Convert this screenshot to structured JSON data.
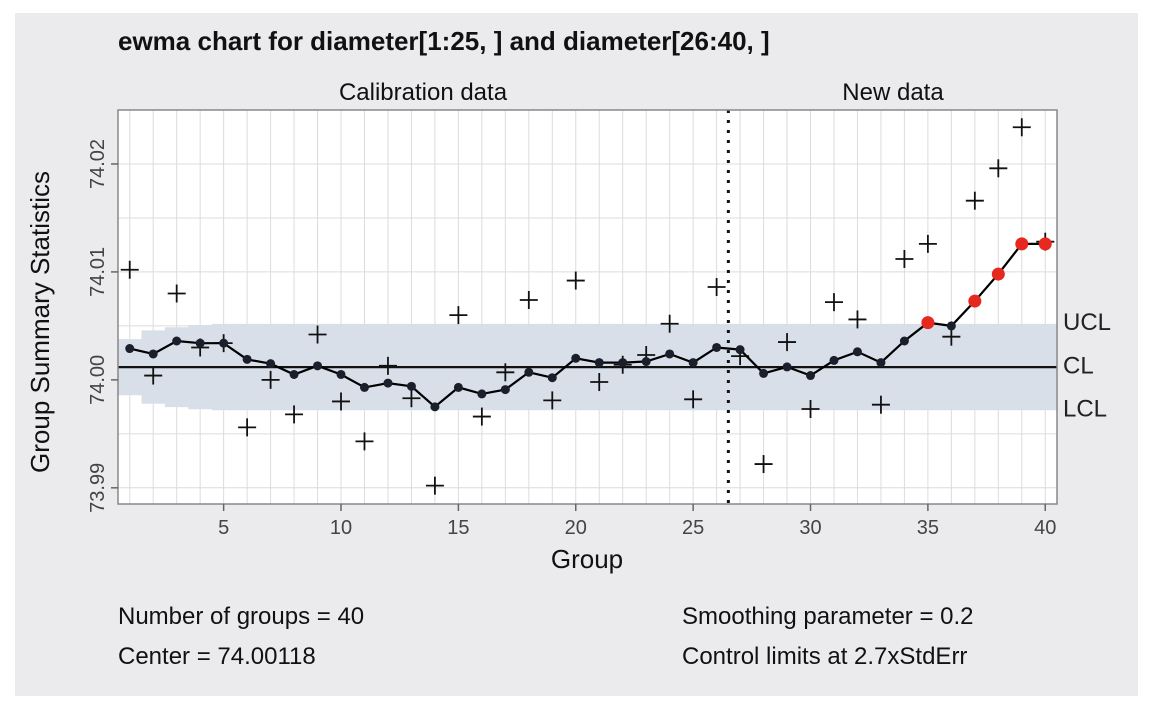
{
  "chart_data": {
    "type": "line",
    "title": "ewma chart for diameter[1:25, ] and diameter[26:40, ]",
    "xlabel": "Group",
    "ylabel": "Group Summary Statistics",
    "section_labels": [
      "Calibration data",
      "New data"
    ],
    "xlim": [
      0.5,
      40.5
    ],
    "ylim": [
      73.9885,
      74.025
    ],
    "x_ticks": [
      5,
      10,
      15,
      20,
      25,
      30,
      35,
      40
    ],
    "y_ticks": [
      73.99,
      74.0,
      74.01,
      74.02
    ],
    "y_tick_labels": [
      "73.99",
      "74.00",
      "74.01",
      "74.02"
    ],
    "calibration_groups": 25,
    "center": 74.00118,
    "ucl": 74.0052,
    "lcl": 73.9972,
    "limit_labels": [
      "UCL",
      "CL",
      "LCL"
    ],
    "grid": true,
    "groups": [
      1,
      2,
      3,
      4,
      5,
      6,
      7,
      8,
      9,
      10,
      11,
      12,
      13,
      14,
      15,
      16,
      17,
      18,
      19,
      20,
      21,
      22,
      23,
      24,
      25,
      26,
      27,
      28,
      29,
      30,
      31,
      32,
      33,
      34,
      35,
      36,
      37,
      38,
      39,
      40
    ],
    "series": [
      {
        "name": "statistics",
        "marker": "plus",
        "values": [
          74.0102,
          74.0004,
          74.008,
          74.003,
          74.0034,
          73.9956,
          74.0,
          73.9968,
          74.0042,
          73.998,
          73.9943,
          74.0013,
          73.9983,
          73.9902,
          74.006,
          73.9966,
          74.0007,
          74.0074,
          73.9981,
          74.0092,
          73.9998,
          74.0014,
          74.0023,
          74.0052,
          73.9982,
          74.0086,
          74.0022,
          73.9922,
          74.0035,
          73.9973,
          74.0072,
          74.0056,
          73.9977,
          74.0112,
          74.0126,
          74.004,
          74.0166,
          74.0196,
          74.0234,
          74.0128
        ]
      },
      {
        "name": "ewma",
        "marker": "dot",
        "values": [
          74.0029,
          74.0024,
          74.0036,
          74.0034,
          74.0034,
          74.0019,
          74.0015,
          74.0005,
          74.0013,
          74.0005,
          73.9993,
          73.9997,
          73.9994,
          73.9975,
          73.9993,
          73.9987,
          73.9991,
          74.0007,
          74.0002,
          74.002,
          74.0016,
          74.0016,
          74.0017,
          74.0024,
          74.0016,
          74.003,
          74.0028,
          74.0006,
          74.0012,
          74.0004,
          74.0018,
          74.0026,
          74.0016,
          74.0036,
          74.0053,
          74.005,
          74.0073,
          74.0098,
          74.0126,
          74.0126
        ]
      }
    ],
    "limits_band": {
      "groups": [
        1,
        2,
        3,
        4,
        5,
        6,
        7,
        8,
        9,
        10
      ],
      "half_width": [
        0.0026,
        0.0034,
        0.0037,
        0.0039,
        0.004,
        0.004,
        0.004,
        0.004,
        0.004,
        0.004
      ],
      "asymptotic_half_width": 0.004
    },
    "violating_points": [
      35,
      37,
      38,
      39,
      40
    ],
    "colors": {
      "panel_bg": "#ebebee",
      "plot_bg": "#ffffff",
      "grid": "#dcdcdc",
      "band": "#d8dfe9",
      "line": "#000000",
      "dot": "#1b1f2b",
      "violation": "#e6281e"
    }
  },
  "footer": {
    "groups_text": "Number of groups = 40",
    "center_text": "Center = 74.00118",
    "smoothing_text": "Smoothing parameter = 0.2",
    "limits_text": "Control limits at 2.7xStdErr"
  }
}
